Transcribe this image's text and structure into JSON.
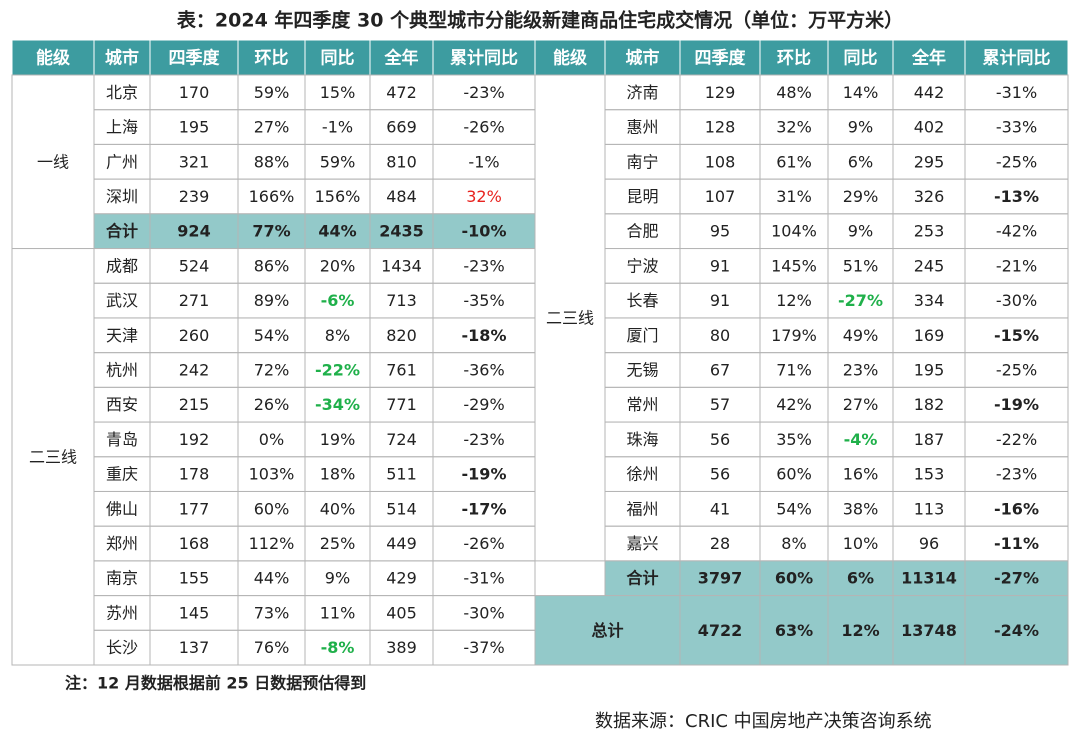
{
  "title": "表：2024 年四季度 30 个典型城市分能级新建商品住宅成交情况（单位：万平方米）",
  "columns": [
    "能级",
    "城市",
    "四季度",
    "环比",
    "同比",
    "全年",
    "累计同比"
  ],
  "left_table": {
    "groups": [
      {
        "tier": "一线",
        "rows": [
          [
            "北京",
            "170",
            "59%",
            "15%",
            "472",
            "-23%"
          ],
          [
            "上海",
            "195",
            "27%",
            "-1%",
            "669",
            "-26%"
          ],
          [
            "广州",
            "321",
            "88%",
            "59%",
            "810",
            "-1%"
          ],
          [
            "深圳",
            "239",
            "166%",
            "156%",
            "484",
            {
              "text": "32%",
              "color": "#e8231f"
            }
          ]
        ],
        "total": {
          "label": "合计",
          "cells": [
            "924",
            "77%",
            "44%",
            "2435",
            "-10%"
          ]
        }
      },
      {
        "tier": "二三线",
        "rows": [
          [
            "成都",
            "524",
            "86%",
            "20%",
            "1434",
            "-23%"
          ],
          [
            "武汉",
            "271",
            "89%",
            {
              "text": "-6%",
              "color": "#1fb04a",
              "bold": true
            },
            "713",
            "-35%"
          ],
          [
            "天津",
            "260",
            "54%",
            "8%",
            "820",
            {
              "text": "-18%",
              "bold": true
            }
          ],
          [
            "杭州",
            "242",
            "72%",
            {
              "text": "-22%",
              "color": "#1fb04a",
              "bold": true
            },
            "761",
            "-36%"
          ],
          [
            "西安",
            "215",
            "26%",
            {
              "text": "-34%",
              "color": "#1fb04a",
              "bold": true
            },
            "771",
            "-29%"
          ],
          [
            "青岛",
            "192",
            "0%",
            "19%",
            "724",
            "-23%"
          ],
          [
            "重庆",
            "178",
            "103%",
            "18%",
            "511",
            {
              "text": "-19%",
              "bold": true
            }
          ],
          [
            "佛山",
            "177",
            "60%",
            "40%",
            "514",
            {
              "text": "-17%",
              "bold": true
            }
          ],
          [
            "郑州",
            "168",
            "112%",
            "25%",
            "449",
            "-26%"
          ],
          [
            "南京",
            "155",
            "44%",
            "9%",
            "429",
            "-31%"
          ],
          [
            "苏州",
            "145",
            "73%",
            "11%",
            "405",
            "-30%"
          ],
          [
            "长沙",
            "137",
            "76%",
            {
              "text": "-8%",
              "color": "#1fb04a",
              "bold": true
            },
            "389",
            "-37%"
          ]
        ]
      }
    ]
  },
  "right_table": {
    "groups": [
      {
        "tier": "二三线",
        "rows": [
          [
            "济南",
            "129",
            "48%",
            "14%",
            "442",
            "-31%"
          ],
          [
            "惠州",
            "128",
            "32%",
            "9%",
            "402",
            "-33%"
          ],
          [
            "南宁",
            "108",
            "61%",
            "6%",
            "295",
            "-25%"
          ],
          [
            "昆明",
            "107",
            "31%",
            "29%",
            "326",
            {
              "text": "-13%",
              "bold": true
            }
          ],
          [
            "合肥",
            "95",
            "104%",
            "9%",
            "253",
            "-42%"
          ],
          [
            "宁波",
            "91",
            "145%",
            "51%",
            "245",
            "-21%"
          ],
          [
            "长春",
            "91",
            "12%",
            {
              "text": "-27%",
              "color": "#1fb04a",
              "bold": true
            },
            "334",
            "-30%"
          ],
          [
            "厦门",
            "80",
            "179%",
            "49%",
            "169",
            {
              "text": "-15%",
              "bold": true
            }
          ],
          [
            "无锡",
            "67",
            "71%",
            "23%",
            "195",
            "-25%"
          ],
          [
            "常州",
            "57",
            "42%",
            "27%",
            "182",
            {
              "text": "-19%",
              "bold": true
            }
          ],
          [
            "珠海",
            "56",
            "35%",
            {
              "text": "-4%",
              "color": "#1fb04a",
              "bold": true
            },
            "187",
            "-22%"
          ],
          [
            "徐州",
            "56",
            "60%",
            "16%",
            "153",
            "-23%"
          ],
          [
            "福州",
            "41",
            "54%",
            "38%",
            "113",
            {
              "text": "-16%",
              "bold": true
            }
          ],
          [
            "嘉兴",
            "28",
            "8%",
            "10%",
            "96",
            {
              "text": "-11%",
              "bold": true
            }
          ]
        ],
        "total": {
          "label": "合计",
          "cells": [
            "3797",
            "60%",
            "6%",
            "11314",
            "-27%"
          ]
        }
      }
    ],
    "grand_total": {
      "label": "总计",
      "cells": [
        "4722",
        "63%",
        "12%",
        "13748",
        "-24%"
      ]
    }
  },
  "note": "注：12 月数据根据前 25 日数据预估得到",
  "source": "数据来源：CRIC 中国房地产决策咨询系统"
}
